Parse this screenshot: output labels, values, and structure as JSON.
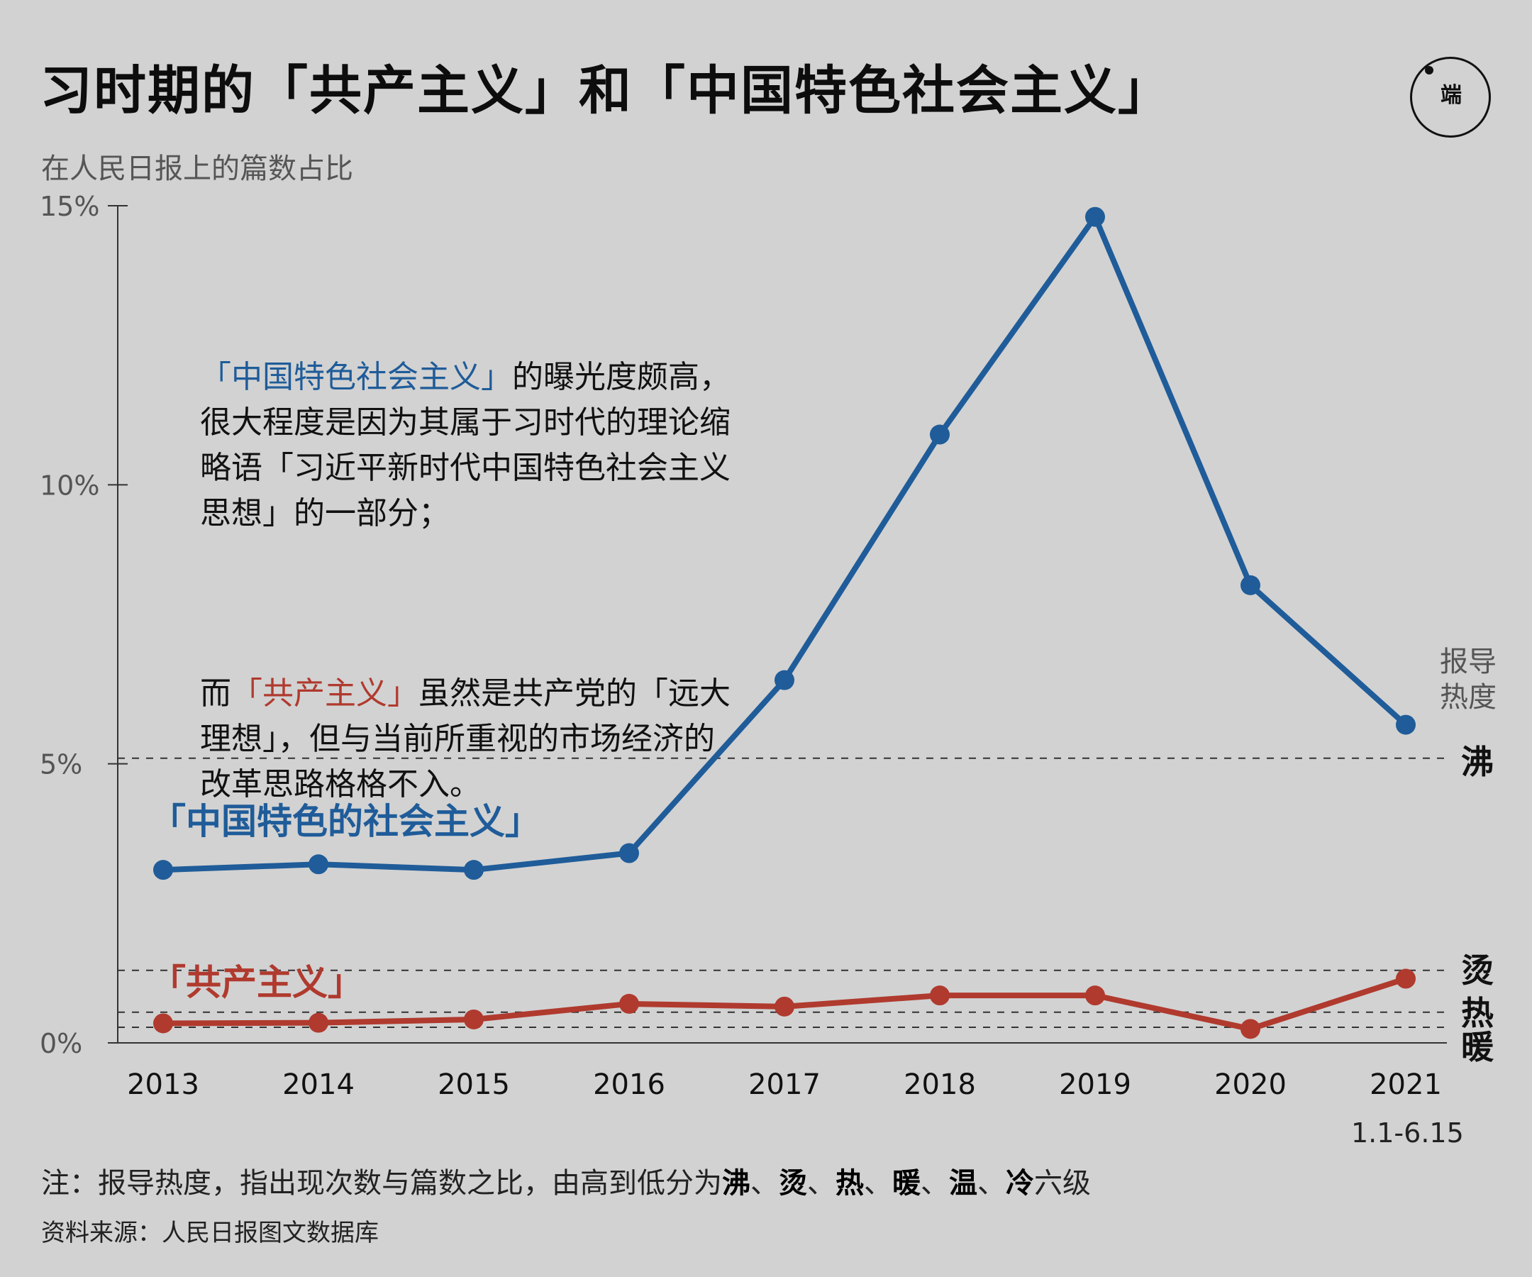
{
  "title": "习时期的「共产主义」和「中国特色社会主义」",
  "subtitle": "在人民日报上的篇数占比",
  "logo_text": "端",
  "annotation": {
    "para1_highlight": "「中国特色社会主义」",
    "para1_rest": "的曝光度颇高，很大程度是因为其属于习时代的理论缩略语「习近平新时代中国特色社会主义思想」的一部分；",
    "para2_lead": "而",
    "para2_highlight": "「共产主义」",
    "para2_rest": "虽然是共产党的「远大理想」，但与当前所重视的市场经济的改革思路格格不入。"
  },
  "heat_scale": {
    "title": "报导热度",
    "levels": [
      {
        "label": "沸",
        "value": 5.1
      },
      {
        "label": "烫",
        "value": 1.3
      },
      {
        "label": "热",
        "value": 0.55
      },
      {
        "label": "暖",
        "value": 0.28
      }
    ]
  },
  "date_note": "1.1-6.15",
  "note": {
    "prefix": "注：报导热度，指出现次数与篇数之比，由高到低分为",
    "levels": [
      "沸",
      "烫",
      "热",
      "暖",
      "温",
      "冷"
    ],
    "suffix": "六级"
  },
  "source": "资料来源：人民日报图文数据库",
  "colors": {
    "blue": "#1f5c99",
    "red": "#b03a2e",
    "background": "#d2d2d2"
  },
  "chart_data": {
    "type": "line",
    "x": [
      "2013",
      "2014",
      "2015",
      "2016",
      "2017",
      "2018",
      "2019",
      "2020",
      "2021"
    ],
    "ylim": [
      0,
      15
    ],
    "yticks": [
      "0%",
      "5%",
      "10%",
      "15%"
    ],
    "ytick_values": [
      0,
      5,
      10,
      15
    ],
    "series": [
      {
        "name": "「中国特色的社会主义」",
        "color": "#1f5c99",
        "values": [
          3.1,
          3.2,
          3.1,
          3.4,
          6.5,
          10.9,
          14.8,
          8.2,
          5.7
        ]
      },
      {
        "name": "「共产主义」",
        "color": "#b03a2e",
        "values": [
          0.35,
          0.36,
          0.42,
          0.7,
          0.65,
          0.85,
          0.85,
          0.25,
          1.15
        ]
      }
    ]
  }
}
